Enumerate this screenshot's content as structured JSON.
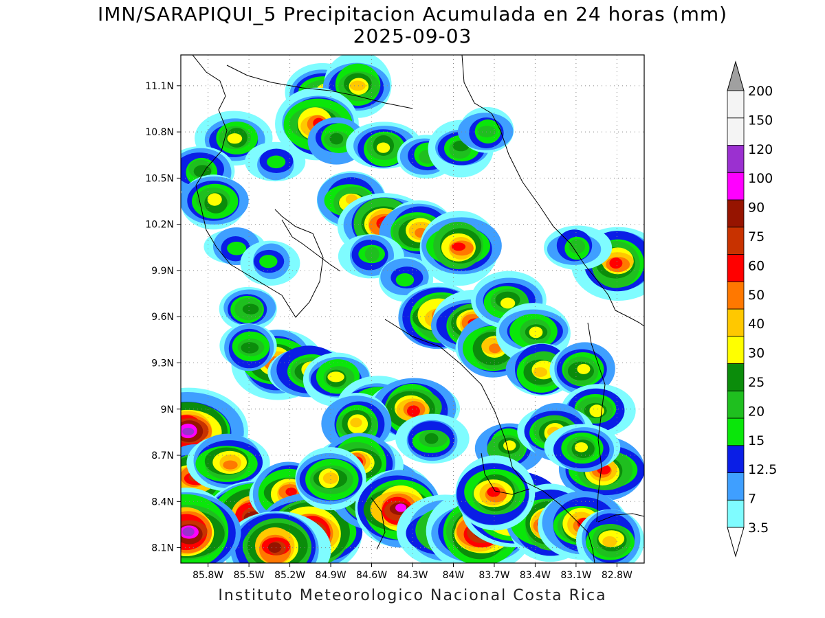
{
  "title": "IMN/SARAPIQUI_5 Precipitacion Acumulada en 24 horas (mm)",
  "date": "2025-09-03",
  "footer": "Instituto Meteorologico Nacional Costa Rica",
  "lat_ticks": [
    "11.1N",
    "10.8N",
    "10.5N",
    "10.2N",
    "9.9N",
    "9.6N",
    "9.3N",
    "9N",
    "8.7N",
    "8.4N",
    "8.1N"
  ],
  "lon_ticks": [
    "85.8W",
    "85.5W",
    "85.2W",
    "84.9W",
    "84.6W",
    "84.3W",
    "84W",
    "83.7W",
    "83.4W",
    "83.1W",
    "82.8W"
  ],
  "legend": {
    "levels": [
      "3.5",
      "7",
      "12.5",
      "15",
      "20",
      "25",
      "30",
      "40",
      "50",
      "60",
      "75",
      "90",
      "100",
      "120",
      "150",
      "200"
    ],
    "colors": [
      "#7ffcff",
      "#3f9fff",
      "#0a1ee6",
      "#0ae60a",
      "#1fbf1f",
      "#0b8c0b",
      "#ffff00",
      "#ffc800",
      "#ff7800",
      "#ff0000",
      "#c83200",
      "#961400",
      "#ff00ff",
      "#9b30d0",
      "#f4f4f4",
      "#a0a0a0"
    ]
  },
  "precip_cells": [
    {
      "lon": -84.95,
      "lat": 11.05,
      "v": 45
    },
    {
      "lon": -84.7,
      "lat": 11.1,
      "v": 40
    },
    {
      "lon": -85.0,
      "lat": 10.85,
      "v": 70
    },
    {
      "lon": -84.85,
      "lat": 10.75,
      "v": 25
    },
    {
      "lon": -84.5,
      "lat": 10.7,
      "v": 35
    },
    {
      "lon": -84.2,
      "lat": 10.65,
      "v": 22
    },
    {
      "lon": -83.95,
      "lat": 10.7,
      "v": 28
    },
    {
      "lon": -83.75,
      "lat": 10.8,
      "v": 20
    },
    {
      "lon": -85.6,
      "lat": 10.75,
      "v": 32
    },
    {
      "lon": -85.85,
      "lat": 10.55,
      "v": 25
    },
    {
      "lon": -85.75,
      "lat": 10.35,
      "v": 30
    },
    {
      "lon": -85.3,
      "lat": 10.6,
      "v": 18
    },
    {
      "lon": -84.75,
      "lat": 10.35,
      "v": 40
    },
    {
      "lon": -84.5,
      "lat": 10.2,
      "v": 80
    },
    {
      "lon": -84.25,
      "lat": 10.15,
      "v": 55
    },
    {
      "lon": -84.6,
      "lat": 10.0,
      "v": 22
    },
    {
      "lon": -83.95,
      "lat": 10.05,
      "v": 65
    },
    {
      "lon": -84.35,
      "lat": 9.85,
      "v": 18
    },
    {
      "lon": -85.6,
      "lat": 10.05,
      "v": 18
    },
    {
      "lon": -85.35,
      "lat": 9.95,
      "v": 16
    },
    {
      "lon": -85.5,
      "lat": 9.65,
      "v": 25
    },
    {
      "lon": -84.1,
      "lat": 9.6,
      "v": 70
    },
    {
      "lon": -83.85,
      "lat": 9.55,
      "v": 60
    },
    {
      "lon": -83.7,
      "lat": 9.4,
      "v": 50
    },
    {
      "lon": -83.6,
      "lat": 9.7,
      "v": 35
    },
    {
      "lon": -83.4,
      "lat": 9.5,
      "v": 30
    },
    {
      "lon": -83.35,
      "lat": 9.25,
      "v": 40
    },
    {
      "lon": -83.05,
      "lat": 9.25,
      "v": 35
    },
    {
      "lon": -82.95,
      "lat": 9.0,
      "v": 30
    },
    {
      "lon": -82.8,
      "lat": 9.95,
      "v": 65
    },
    {
      "lon": -83.1,
      "lat": 10.05,
      "v": 20
    },
    {
      "lon": -85.3,
      "lat": 9.3,
      "v": 60
    },
    {
      "lon": -85.05,
      "lat": 9.25,
      "v": 45
    },
    {
      "lon": -84.85,
      "lat": 9.2,
      "v": 30
    },
    {
      "lon": -85.5,
      "lat": 9.4,
      "v": 28
    },
    {
      "lon": -84.55,
      "lat": 9.0,
      "v": 55
    },
    {
      "lon": -84.3,
      "lat": 9.0,
      "v": 70
    },
    {
      "lon": -84.7,
      "lat": 8.9,
      "v": 40
    },
    {
      "lon": -84.15,
      "lat": 8.8,
      "v": 25
    },
    {
      "lon": -83.6,
      "lat": 8.75,
      "v": 35
    },
    {
      "lon": -83.25,
      "lat": 8.85,
      "v": 45
    },
    {
      "lon": -82.9,
      "lat": 8.6,
      "v": 70
    },
    {
      "lon": -83.05,
      "lat": 8.75,
      "v": 35
    },
    {
      "lon": -85.95,
      "lat": 8.85,
      "v": 120
    },
    {
      "lon": -85.9,
      "lat": 8.55,
      "v": 80
    },
    {
      "lon": -85.65,
      "lat": 8.65,
      "v": 50
    },
    {
      "lon": -85.45,
      "lat": 8.3,
      "v": 110
    },
    {
      "lon": -85.2,
      "lat": 8.45,
      "v": 70
    },
    {
      "lon": -85.05,
      "lat": 8.2,
      "v": 120
    },
    {
      "lon": -85.3,
      "lat": 8.1,
      "v": 90
    },
    {
      "lon": -84.55,
      "lat": 8.45,
      "v": 90
    },
    {
      "lon": -84.7,
      "lat": 8.65,
      "v": 70
    },
    {
      "lon": -84.9,
      "lat": 8.55,
      "v": 45
    },
    {
      "lon": -84.4,
      "lat": 8.35,
      "v": 110
    },
    {
      "lon": -84.05,
      "lat": 8.2,
      "v": 60
    },
    {
      "lon": -83.8,
      "lat": 8.2,
      "v": 100
    },
    {
      "lon": -83.55,
      "lat": 8.35,
      "v": 110
    },
    {
      "lon": -83.3,
      "lat": 8.25,
      "v": 75
    },
    {
      "lon": -83.05,
      "lat": 8.25,
      "v": 70
    },
    {
      "lon": -82.85,
      "lat": 8.15,
      "v": 40
    },
    {
      "lon": -83.7,
      "lat": 8.45,
      "v": 60
    },
    {
      "lon": -85.95,
      "lat": 8.2,
      "v": 130
    }
  ]
}
